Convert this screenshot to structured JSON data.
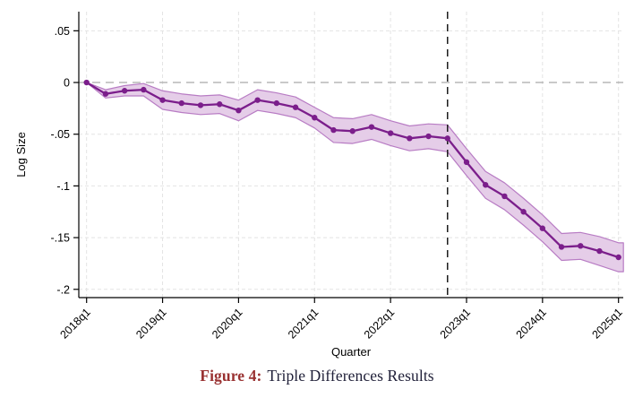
{
  "figure": {
    "caption": {
      "label": "Figure 4:",
      "text": "Triple Differences Results"
    }
  },
  "chart_data": {
    "type": "line",
    "title": "",
    "xlabel": "Quarter",
    "ylabel": "Log Size",
    "x": [
      "2018q1",
      "2018q2",
      "2018q3",
      "2018q4",
      "2019q1",
      "2019q2",
      "2019q3",
      "2019q4",
      "2020q1",
      "2020q2",
      "2020q3",
      "2020q4",
      "2021q1",
      "2021q2",
      "2021q3",
      "2021q4",
      "2022q1",
      "2022q2",
      "2022q3",
      "2022q4",
      "2023q1",
      "2023q2",
      "2023q3",
      "2023q4",
      "2024q1",
      "2024q2",
      "2024q3",
      "2024q4",
      "2025q1"
    ],
    "values": [
      0.0,
      -0.011,
      -0.008,
      -0.007,
      -0.017,
      -0.02,
      -0.022,
      -0.021,
      -0.027,
      -0.017,
      -0.02,
      -0.024,
      -0.034,
      -0.046,
      -0.047,
      -0.043,
      -0.049,
      -0.054,
      -0.052,
      -0.054,
      -0.077,
      -0.099,
      -0.11,
      -0.125,
      -0.141,
      -0.159,
      -0.158,
      -0.163,
      -0.169
    ],
    "ci_upper": [
      0.0,
      -0.007,
      -0.003,
      -0.001,
      -0.008,
      -0.011,
      -0.013,
      -0.012,
      -0.017,
      -0.007,
      -0.01,
      -0.014,
      -0.024,
      -0.034,
      -0.035,
      -0.031,
      -0.037,
      -0.042,
      -0.04,
      -0.041,
      -0.064,
      -0.086,
      -0.097,
      -0.112,
      -0.128,
      -0.146,
      -0.145,
      -0.149,
      -0.155
    ],
    "ci_lower": [
      0.0,
      -0.015,
      -0.013,
      -0.013,
      -0.026,
      -0.029,
      -0.031,
      -0.03,
      -0.037,
      -0.027,
      -0.03,
      -0.034,
      -0.044,
      -0.058,
      -0.059,
      -0.055,
      -0.061,
      -0.066,
      -0.064,
      -0.067,
      -0.09,
      -0.112,
      -0.123,
      -0.138,
      -0.154,
      -0.172,
      -0.171,
      -0.177,
      -0.183
    ],
    "x_tick_labels": [
      "2018q1",
      "2019q1",
      "2020q1",
      "2021q1",
      "2022q1",
      "2023q1",
      "2024q1",
      "2025q1"
    ],
    "y_ticks": [
      0.05,
      0,
      -0.05,
      -0.1,
      -0.15,
      -0.2
    ],
    "y_tick_labels": [
      ".05",
      "0",
      "-.05",
      "-.1",
      "-.15",
      "-.2"
    ],
    "ylim": [
      -0.208,
      0.0685
    ],
    "xlim_index": [
      -0.41,
      28.25
    ],
    "hline_y": 0,
    "vline_x": "2022q4",
    "grid": true,
    "legend": "none",
    "marker": "circle",
    "colors": {
      "line": "#7b1e8b",
      "band_fill": "#e5cde8",
      "band_edge": "#b87cc4",
      "vline": "#1b1b1b",
      "zero_line": "#a9a9a9",
      "grid": "#e3e3e3",
      "axis": "#000000",
      "caption_label": "#993131",
      "caption_text": "#1f1f38"
    }
  }
}
